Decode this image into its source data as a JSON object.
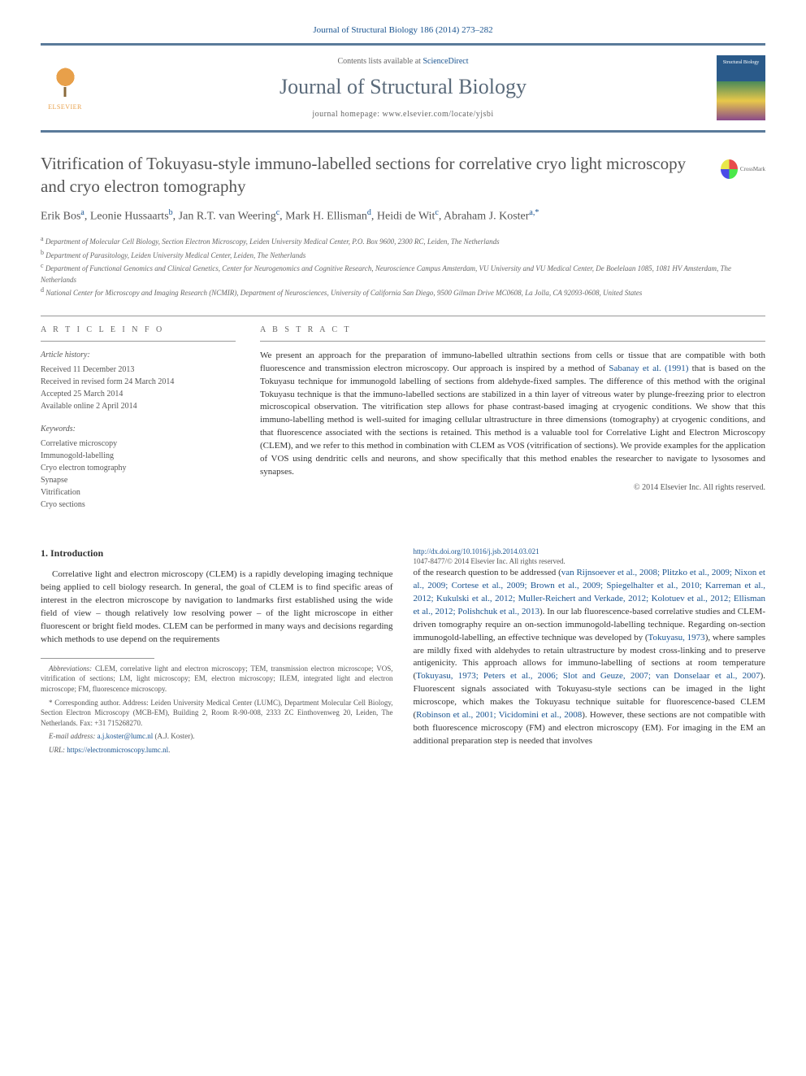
{
  "citation": "Journal of Structural Biology 186 (2014) 273–282",
  "header": {
    "contents_prefix": "Contents lists available at ",
    "contents_link": "ScienceDirect",
    "journal_name": "Journal of Structural Biology",
    "homepage_prefix": "journal homepage: ",
    "homepage_url": "www.elsevier.com/locate/yjsbi",
    "publisher": "ELSEVIER"
  },
  "title": "Vitrification of Tokuyasu-style immuno-labelled sections for correlative cryo light microscopy and cryo electron tomography",
  "crossmark": "CrossMark",
  "authors_html": "Erik Bos<sup>a</sup>, Leonie Hussaarts<sup>b</sup>, Jan R.T. van Weering<sup>c</sup>, Mark H. Ellisman<sup>d</sup>, Heidi de Wit<sup>c</sup>, Abraham J. Koster<sup>a,*</sup>",
  "affiliations": [
    {
      "sup": "a",
      "text": "Department of Molecular Cell Biology, Section Electron Microscopy, Leiden University Medical Center, P.O. Box 9600, 2300 RC, Leiden, The Netherlands"
    },
    {
      "sup": "b",
      "text": "Department of Parasitology, Leiden University Medical Center, Leiden, The Netherlands"
    },
    {
      "sup": "c",
      "text": "Department of Functional Genomics and Clinical Genetics, Center for Neurogenomics and Cognitive Research, Neuroscience Campus Amsterdam, VU University and VU Medical Center, De Boelelaan 1085, 1081 HV Amsterdam, The Netherlands"
    },
    {
      "sup": "d",
      "text": "National Center for Microscopy and Imaging Research (NCMIR), Department of Neurosciences, University of California San Diego, 9500 Gilman Drive MC0608, La Jolla, CA 92093-0608, United States"
    }
  ],
  "info": {
    "heading": "A R T I C L E   I N F O",
    "history_label": "Article history:",
    "history": [
      "Received 11 December 2013",
      "Received in revised form 24 March 2014",
      "Accepted 25 March 2014",
      "Available online 2 April 2014"
    ],
    "keywords_label": "Keywords:",
    "keywords": [
      "Correlative microscopy",
      "Immunogold-labelling",
      "Cryo electron tomography",
      "Synapse",
      "Vitrification",
      "Cryo sections"
    ]
  },
  "abstract": {
    "heading": "A B S T R A C T",
    "text_pre": "We present an approach for the preparation of immuno-labelled ultrathin sections from cells or tissue that are compatible with both fluorescence and transmission electron microscopy. Our approach is inspired by a method of ",
    "ref1": "Sabanay et al. (1991)",
    "text_post": " that is based on the Tokuyasu technique for immunogold labelling of sections from aldehyde-fixed samples. The difference of this method with the original Tokuyasu technique is that the immuno-labelled sections are stabilized in a thin layer of vitreous water by plunge-freezing prior to electron microscopical observation. The vitrification step allows for phase contrast-based imaging at cryogenic conditions. We show that this immuno-labelling method is well-suited for imaging cellular ultrastructure in three dimensions (tomography) at cryogenic conditions, and that fluorescence associated with the sections is retained. This method is a valuable tool for Correlative Light and Electron Microscopy (CLEM), and we refer to this method in combination with CLEM as VOS (vitrification of sections). We provide examples for the application of VOS using dendritic cells and neurons, and show specifically that this method enables the researcher to navigate to lysosomes and synapses.",
    "copyright": "© 2014 Elsevier Inc. All rights reserved."
  },
  "body": {
    "section1_heading": "1. Introduction",
    "para1_pre": "Correlative light and electron microscopy (CLEM) is a rapidly developing imaging technique being applied to cell biology research. In general, the goal of CLEM is to find specific areas of interest in the electron microscope by navigation to landmarks first established using the wide field of view – though relatively low resolving power – of the light microscope in either fluorescent or bright field modes. CLEM can be performed in many ways and decisions regarding which methods to use depend on the requirements ",
    "para1_col2_pre": "of the research question to be addressed (",
    "refs_block": "van Rijnsoever et al., 2008; Plitzko et al., 2009; Nixon et al., 2009; Cortese et al., 2009; Brown et al., 2009; Spiegelhalter et al., 2010; Karreman et al., 2012; Kukulski et al., 2012; Muller-Reichert and Verkade, 2012; Kolotuev et al., 2012; Ellisman et al., 2012; Polishchuk et al., 2013",
    "para1_mid": "). In our lab fluorescence-based correlative studies and CLEM-driven tomography require an on-section immunogold-labelling technique. Regarding on-section immunogold-labelling, an effective technique was developed by (",
    "ref_toku1": "Tokuyasu, 1973",
    "para1_mid2": "), where samples are mildly fixed with aldehydes to retain ultrastructure by modest cross-linking and to preserve antigenicity. This approach allows for immuno-labelling of sections at room temperature (",
    "refs_block2": "Tokuyasu, 1973; Peters et al., 2006; Slot and Geuze, 2007; van Donselaar et al., 2007",
    "para1_mid3": "). Fluorescent signals associated with Tokuyasu-style sections can be imaged in the light microscope, which makes the Tokuyasu technique suitable for fluorescence-based CLEM (",
    "refs_block3": "Robinson et al., 2001; Vicidomini et al., 2008",
    "para1_end": "). However, these sections are not compatible with both fluorescence microscopy (FM) and electron microscopy (EM). For imaging in the EM an additional preparation step is needed that involves"
  },
  "footnotes": {
    "abbrev_label": "Abbreviations:",
    "abbrev_text": " CLEM, correlative light and electron microscopy; TEM, transmission electron microscope; VOS, vitrification of sections; LM, light microscopy; EM, electron microscopy; ILEM, integrated light and electron microscope; FM, fluorescence microscopy.",
    "corr_label": "* Corresponding author.",
    "corr_text": " Address: Leiden University Medical Center (LUMC), Department Molecular Cell Biology, Section Electron Microscopy (MCB-EM), Building 2, Room R-90-008, 2333 ZC Einthovenweg 20, Leiden, The Netherlands. Fax: +31 715268270.",
    "email_label": "E-mail address: ",
    "email": "a.j.koster@lumc.nl",
    "email_suffix": " (A.J. Koster).",
    "url_label": "URL: ",
    "url": "https://electronmicroscopy.lumc.nl"
  },
  "doi": {
    "link": "http://dx.doi.org/10.1016/j.jsb.2014.03.021",
    "issn_line": "1047-8477/© 2014 Elsevier Inc. All rights reserved."
  },
  "colors": {
    "link": "#1a5490",
    "rule": "#5a7a9a",
    "text": "#333333",
    "muted": "#666666"
  }
}
